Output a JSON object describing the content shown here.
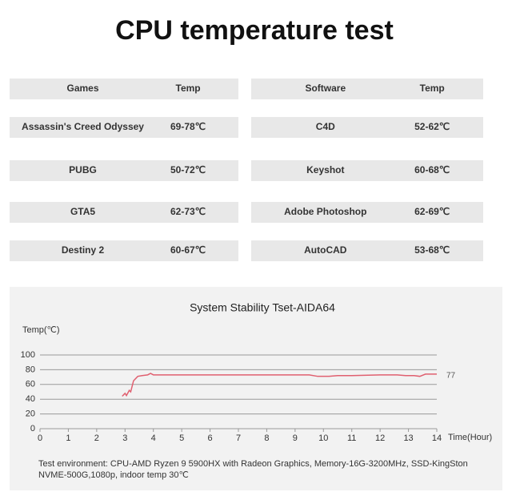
{
  "header": {
    "title": "CPU temperature test"
  },
  "tables": [
    {
      "header": [
        "Games",
        "Temp"
      ],
      "rows": [
        [
          "Assassin's Creed Odyssey",
          "69-78℃"
        ],
        [
          "PUBG",
          "50-72℃"
        ],
        [
          "GTA5",
          "62-73℃"
        ],
        [
          "Destiny 2",
          "60-67℃"
        ]
      ]
    },
    {
      "header": [
        "Software",
        "Temp"
      ],
      "rows": [
        [
          "C4D",
          "52-62℃"
        ],
        [
          "Keyshot",
          "60-68℃"
        ],
        [
          "Adobe Photoshop",
          "62-69℃"
        ],
        [
          "AutoCAD",
          "53-68℃"
        ]
      ]
    }
  ],
  "chart_data": {
    "type": "line",
    "title": "System Stability Tset-AIDA64",
    "y_label": "Temp(℃)",
    "x_label": "Time(Hour)",
    "annotation": "77",
    "color": "#e06070",
    "grid": true,
    "x": [
      2.9,
      3.0,
      3.05,
      3.15,
      3.2,
      3.3,
      3.45,
      3.6,
      3.8,
      3.9,
      4.0,
      5,
      6,
      7,
      8,
      9,
      9.5,
      9.8,
      10.2,
      10.5,
      11,
      12,
      12.6,
      12.9,
      13.2,
      13.4,
      13.6,
      14
    ],
    "values": [
      44,
      48,
      45,
      52,
      50,
      65,
      71,
      72,
      73,
      75,
      73,
      73,
      73,
      73,
      73,
      73,
      73,
      71,
      71,
      72,
      72,
      73,
      73,
      72,
      72,
      71,
      74,
      74
    ],
    "xlim": [
      0,
      14
    ],
    "xticks": [
      0,
      1,
      2,
      3,
      4,
      5,
      6,
      7,
      8,
      9,
      10,
      11,
      12,
      13,
      14
    ],
    "ylim": [
      0,
      100
    ],
    "yticks": [
      0,
      20,
      40,
      60,
      80,
      100
    ],
    "note": [
      "Test environment: CPU-AMD Ryzen 9 5900HX with Radeon Graphics,  Memory-16G-3200MHz, SSD-KingSton",
      "NVME-500G,1080p, indoor temp 30℃"
    ]
  }
}
